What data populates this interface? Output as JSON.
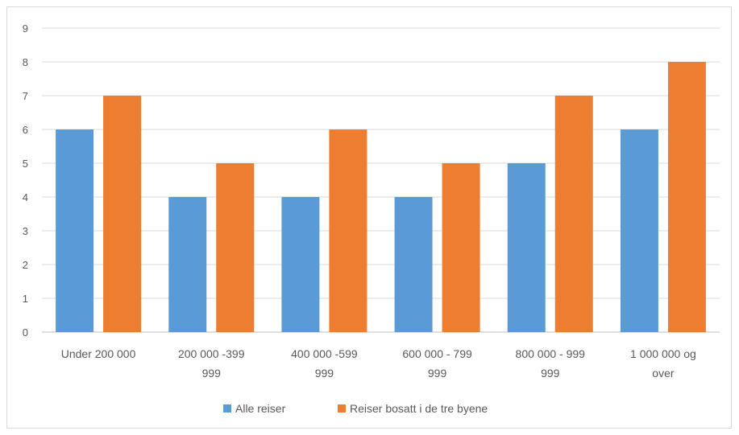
{
  "chart_data": {
    "type": "bar",
    "title": "",
    "xlabel": "",
    "ylabel": "",
    "ylim": [
      0,
      9
    ],
    "yticks": [
      "0",
      "1",
      "2",
      "3",
      "4",
      "5",
      "6",
      "7",
      "8",
      "9"
    ],
    "grid": true,
    "legend_position": "bottom",
    "categories": [
      [
        "Under 200 000"
      ],
      [
        "200 000 -399",
        "999"
      ],
      [
        "400 000 -599",
        "999"
      ],
      [
        "600 000 - 799",
        "999"
      ],
      [
        "800 000 - 999",
        "999"
      ],
      [
        "1 000 000 og",
        "over"
      ]
    ],
    "series": [
      {
        "name": "Alle reiser",
        "color": "#5b9bd5",
        "values": [
          6,
          4,
          4,
          4,
          5,
          6
        ]
      },
      {
        "name": "Reiser bosatt i de tre byene",
        "color": "#ed7d31",
        "values": [
          7,
          5,
          6,
          5,
          7,
          8
        ]
      }
    ]
  }
}
